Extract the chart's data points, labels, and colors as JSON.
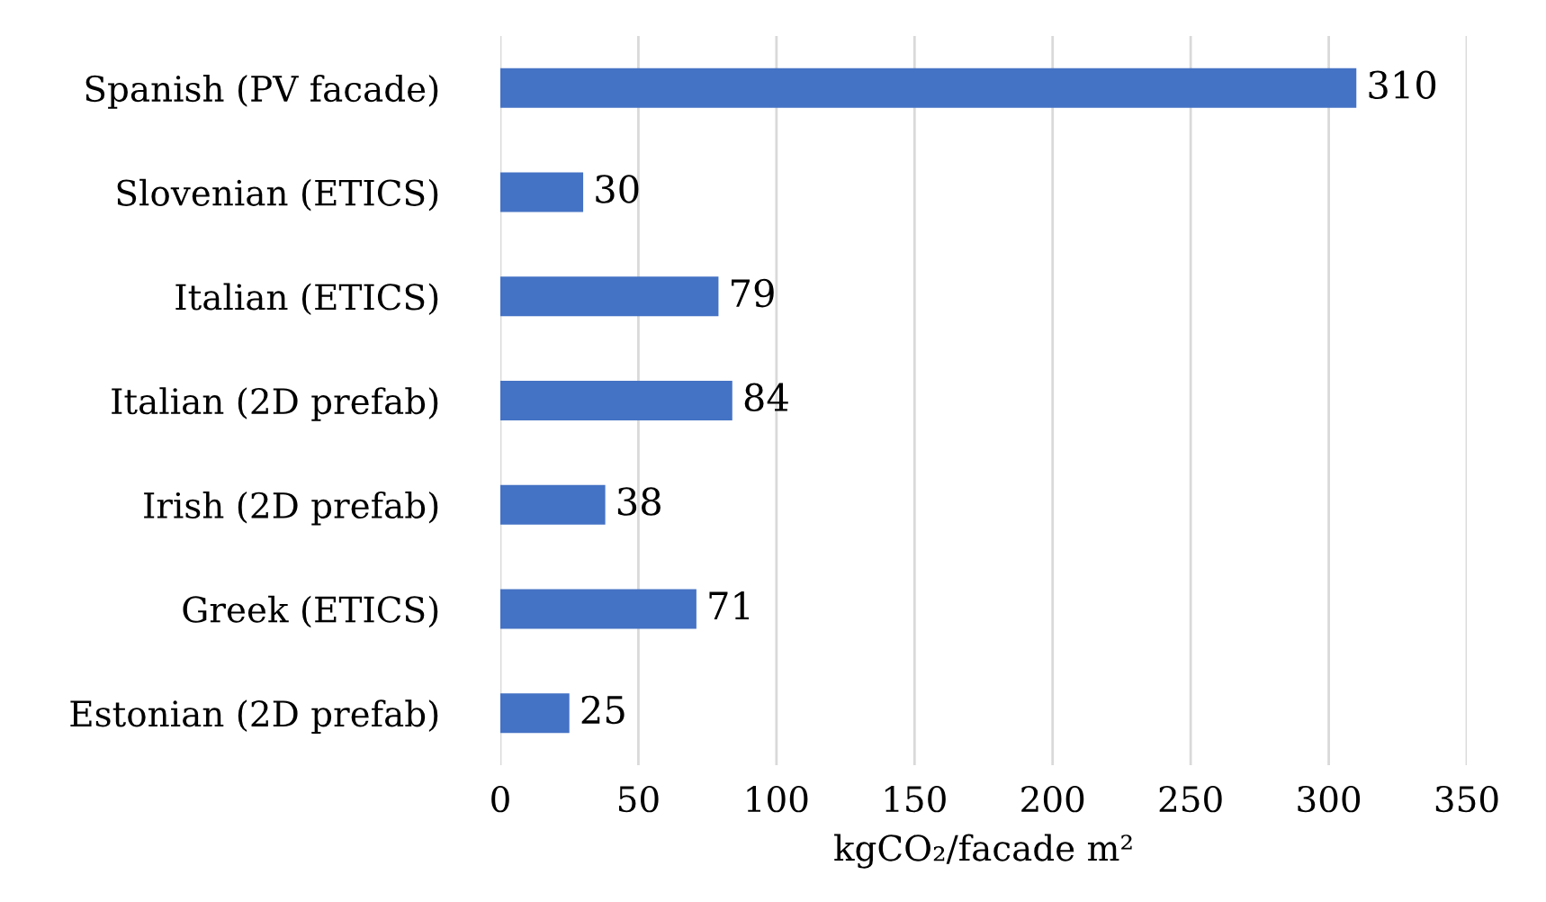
{
  "chart_data": {
    "type": "bar",
    "orientation": "horizontal",
    "xlabel": "kgCO₂/facade m²",
    "categories": [
      "Spanish (PV facade)",
      "Slovenian (ETICS)",
      "Italian (ETICS)",
      "Italian (2D prefab)",
      "Irish (2D prefab)",
      "Greek (ETICS)",
      "Estonian (2D prefab)"
    ],
    "values": [
      310,
      30,
      79,
      84,
      38,
      71,
      25
    ],
    "color": "#4472c4",
    "xlim": [
      0,
      350
    ],
    "xticks": [
      0,
      50,
      100,
      150,
      200,
      250,
      300,
      350
    ],
    "grid": "x",
    "data_labels": true
  }
}
